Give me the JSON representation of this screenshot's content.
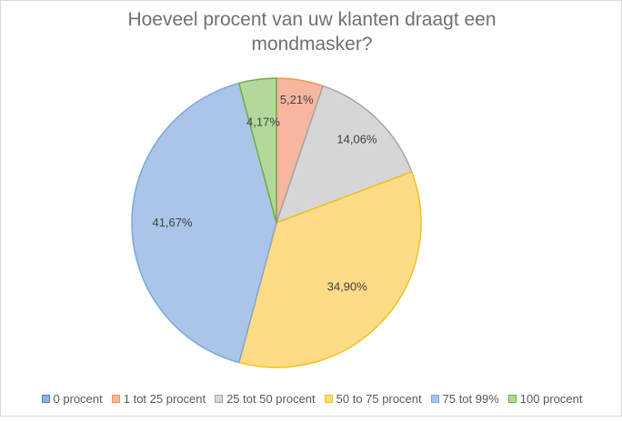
{
  "chart_data": {
    "type": "pie",
    "title_lines": [
      "Hoeveel procent van uw klanten draagt een",
      "mondmasker?"
    ],
    "legend_position": "bottom",
    "slices": [
      {
        "label": "0 procent",
        "value": 0,
        "value_label": "",
        "fill": "#8eb4e3",
        "stroke": "#4f81bd"
      },
      {
        "label": "1 tot 25 procent",
        "value": 5.21,
        "value_label": "5,21%",
        "fill": "#f7b6a0",
        "stroke": "#f79646"
      },
      {
        "label": "25 tot 50 procent",
        "value": 14.06,
        "value_label": "14,06%",
        "fill": "#d6d6d6",
        "stroke": "#a5a5a5"
      },
      {
        "label": "50 to 75 procent",
        "value": 34.9,
        "value_label": "34,90%",
        "fill": "#fedb87",
        "stroke": "#f2c314"
      },
      {
        "label": "75 tot 99%",
        "value": 41.67,
        "value_label": "41,67%",
        "fill": "#a9c5e8",
        "stroke": "#7ea6da"
      },
      {
        "label": "100 procent",
        "value": 4.17,
        "value_label": "4,17%",
        "fill": "#b2d99b",
        "stroke": "#70ad47"
      }
    ]
  }
}
